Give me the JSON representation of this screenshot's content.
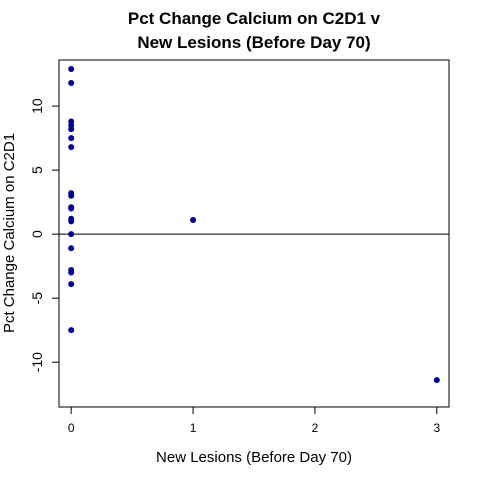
{
  "chart_data": {
    "type": "scatter",
    "title_line1": "Pct Change Calcium on C2D1 v",
    "title_line2": "New Lesions (Before Day 70)",
    "xlabel": "New Lesions (Before Day 70)",
    "ylabel": "Pct Change Calcium on C2D1",
    "xlim": [
      -0.1,
      3.1
    ],
    "ylim": [
      -13.5,
      13.6
    ],
    "xticks": [
      0,
      1,
      2,
      3
    ],
    "yticks": [
      -10,
      -5,
      0,
      5,
      10
    ],
    "hline": 0,
    "point_color": "#00008B",
    "points": [
      {
        "x": 0,
        "y": 12.9
      },
      {
        "x": 0,
        "y": 11.8
      },
      {
        "x": 0,
        "y": 8.8
      },
      {
        "x": 0,
        "y": 8.5
      },
      {
        "x": 0,
        "y": 8.2
      },
      {
        "x": 0,
        "y": 7.5
      },
      {
        "x": 0,
        "y": 6.8
      },
      {
        "x": 0,
        "y": 3.2
      },
      {
        "x": 0,
        "y": 3.0
      },
      {
        "x": 0,
        "y": 2.1
      },
      {
        "x": 0,
        "y": 2.0
      },
      {
        "x": 0,
        "y": 1.2
      },
      {
        "x": 0,
        "y": 1.0
      },
      {
        "x": 0,
        "y": 0.0
      },
      {
        "x": 0,
        "y": -1.1
      },
      {
        "x": 0,
        "y": -2.8
      },
      {
        "x": 0,
        "y": -3.0
      },
      {
        "x": 0,
        "y": -3.9
      },
      {
        "x": 0,
        "y": -7.5
      },
      {
        "x": 1,
        "y": 1.1
      },
      {
        "x": 3,
        "y": -11.4
      }
    ]
  }
}
